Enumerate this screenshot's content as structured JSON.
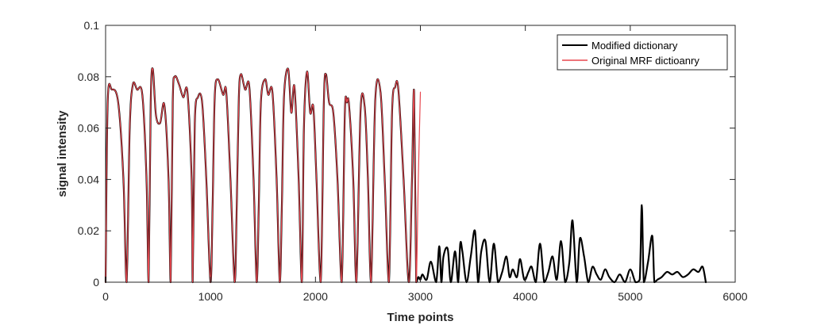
{
  "chart_data": {
    "type": "line",
    "title": "",
    "xlabel": "Time points",
    "ylabel": "signal intensity",
    "xlim": [
      0,
      6000
    ],
    "ylim": [
      0,
      0.1
    ],
    "xticks": [
      0,
      1000,
      2000,
      3000,
      4000,
      5000,
      6000
    ],
    "xtick_labels": [
      "0",
      "1000",
      "2000",
      "3000",
      "4000",
      "5000",
      "6000"
    ],
    "yticks": [
      0,
      0.02,
      0.04,
      0.06,
      0.08,
      0.1
    ],
    "ytick_labels": [
      "0",
      "0.02",
      "0.04",
      "0.06",
      "0.08",
      "0.1"
    ],
    "grid": false,
    "legend_position": "top-right",
    "series": [
      {
        "name": "Modified dictionary",
        "color": "#000000",
        "x": [
          0,
          20,
          60,
          120,
          170,
          200,
          230,
          260,
          300,
          350,
          390,
          410,
          430,
          450,
          480,
          520,
          560,
          600,
          620,
          640,
          660,
          700,
          740,
          780,
          820,
          830,
          850,
          880,
          920,
          960,
          1000,
          1020,
          1040,
          1070,
          1120,
          1150,
          1190,
          1230,
          1250,
          1270,
          1290,
          1330,
          1370,
          1410,
          1440,
          1460,
          1480,
          1520,
          1550,
          1590,
          1630,
          1660,
          1680,
          1700,
          1740,
          1770,
          1800,
          1840,
          1870,
          1890,
          1920,
          1950,
          1980,
          2010,
          2050,
          2080,
          2100,
          2130,
          2170,
          2210,
          2250,
          2280,
          2300,
          2320,
          2360,
          2390,
          2430,
          2470,
          2500,
          2530,
          2570,
          2620,
          2660,
          2700,
          2730,
          2760,
          2790,
          2840,
          2890,
          2920,
          2940,
          2960,
          2980,
          3000,
          3020,
          3060,
          3100,
          3150,
          3180,
          3200,
          3220,
          3260,
          3290,
          3330,
          3360,
          3380,
          3400,
          3440,
          3480,
          3520,
          3550,
          3580,
          3620,
          3660,
          3700,
          3740,
          3780,
          3820,
          3850,
          3880,
          3920,
          3950,
          3990,
          4030,
          4060,
          4100,
          4140,
          4180,
          4220,
          4260,
          4300,
          4340,
          4380,
          4420,
          4450,
          4490,
          4520,
          4560,
          4600,
          4640,
          4680,
          4720,
          4760,
          4800,
          4850,
          4900,
          4950,
          5000,
          5050,
          5090,
          5110,
          5130,
          5170,
          5210,
          5230,
          5260,
          5300,
          5350,
          5400,
          5450,
          5500,
          5550,
          5600,
          5650,
          5690,
          5720
        ],
        "values": [
          0.0,
          0.07,
          0.075,
          0.07,
          0.04,
          0.0,
          0.06,
          0.077,
          0.075,
          0.073,
          0.04,
          0.0,
          0.07,
          0.083,
          0.065,
          0.062,
          0.069,
          0.04,
          0.0,
          0.07,
          0.08,
          0.077,
          0.072,
          0.074,
          0.04,
          0.0,
          0.062,
          0.072,
          0.07,
          0.04,
          0.0,
          0.03,
          0.072,
          0.079,
          0.073,
          0.074,
          0.04,
          0.0,
          0.03,
          0.072,
          0.081,
          0.075,
          0.076,
          0.04,
          0.0,
          0.03,
          0.07,
          0.079,
          0.073,
          0.074,
          0.04,
          0.0,
          0.03,
          0.072,
          0.083,
          0.066,
          0.076,
          0.04,
          0.0,
          0.06,
          0.082,
          0.066,
          0.068,
          0.04,
          0.0,
          0.07,
          0.081,
          0.07,
          0.066,
          0.04,
          0.0,
          0.066,
          0.07,
          0.069,
          0.04,
          0.0,
          0.067,
          0.068,
          0.04,
          0.0,
          0.071,
          0.074,
          0.04,
          0.0,
          0.066,
          0.076,
          0.075,
          0.04,
          0.0,
          0.04,
          0.074,
          0.0,
          0.002,
          0.001,
          0.003,
          0.001,
          0.008,
          0.0,
          0.014,
          0.0,
          0.01,
          0.013,
          0.0,
          0.012,
          0.0,
          0.015,
          0.012,
          0.0,
          0.01,
          0.02,
          0.0,
          0.012,
          0.016,
          0.0,
          0.015,
          0.0,
          0.004,
          0.01,
          0.002,
          0.005,
          0.002,
          0.009,
          0.001,
          0.004,
          0.006,
          0.0,
          0.015,
          0.0,
          0.004,
          0.01,
          0.001,
          0.016,
          0.0,
          0.008,
          0.024,
          0.0,
          0.017,
          0.01,
          0.0,
          0.006,
          0.003,
          0.001,
          0.005,
          0.002,
          0.0,
          0.003,
          0.0,
          0.005,
          0.0,
          0.001,
          0.03,
          0.0,
          0.008,
          0.018,
          0.0,
          0.001,
          0.002,
          0.004,
          0.003,
          0.004,
          0.002,
          0.003,
          0.005,
          0.004,
          0.006,
          0.0
        ]
      },
      {
        "name": "Original MRF dictioanry",
        "color": "#e8474f",
        "x": [
          0,
          20,
          60,
          120,
          170,
          200,
          230,
          260,
          300,
          350,
          390,
          410,
          430,
          450,
          480,
          520,
          560,
          600,
          620,
          640,
          660,
          700,
          740,
          780,
          820,
          830,
          850,
          880,
          920,
          960,
          1000,
          1020,
          1040,
          1070,
          1120,
          1150,
          1190,
          1230,
          1250,
          1270,
          1290,
          1330,
          1370,
          1410,
          1440,
          1460,
          1480,
          1520,
          1550,
          1590,
          1630,
          1660,
          1680,
          1700,
          1740,
          1770,
          1800,
          1840,
          1870,
          1890,
          1920,
          1950,
          1980,
          2010,
          2050,
          2080,
          2100,
          2130,
          2170,
          2210,
          2250,
          2280,
          2300,
          2320,
          2360,
          2390,
          2430,
          2470,
          2500,
          2530,
          2570,
          2620,
          2660,
          2700,
          2730,
          2760,
          2790,
          2840,
          2890,
          2920,
          2940,
          2960,
          2980,
          3000
        ],
        "values": [
          0.0,
          0.07,
          0.075,
          0.07,
          0.04,
          0.0,
          0.06,
          0.077,
          0.075,
          0.073,
          0.04,
          0.0,
          0.07,
          0.083,
          0.065,
          0.062,
          0.069,
          0.04,
          0.0,
          0.07,
          0.08,
          0.077,
          0.072,
          0.074,
          0.04,
          0.0,
          0.062,
          0.072,
          0.07,
          0.04,
          0.0,
          0.03,
          0.072,
          0.079,
          0.073,
          0.074,
          0.04,
          0.0,
          0.03,
          0.072,
          0.081,
          0.075,
          0.076,
          0.04,
          0.0,
          0.03,
          0.07,
          0.079,
          0.073,
          0.074,
          0.04,
          0.0,
          0.03,
          0.072,
          0.083,
          0.066,
          0.076,
          0.04,
          0.0,
          0.06,
          0.082,
          0.066,
          0.068,
          0.04,
          0.0,
          0.07,
          0.081,
          0.07,
          0.066,
          0.04,
          0.0,
          0.066,
          0.07,
          0.069,
          0.04,
          0.0,
          0.067,
          0.068,
          0.04,
          0.0,
          0.071,
          0.074,
          0.04,
          0.0,
          0.066,
          0.076,
          0.075,
          0.04,
          0.0,
          0.04,
          0.074,
          0.0,
          0.04,
          0.074
        ]
      }
    ]
  }
}
